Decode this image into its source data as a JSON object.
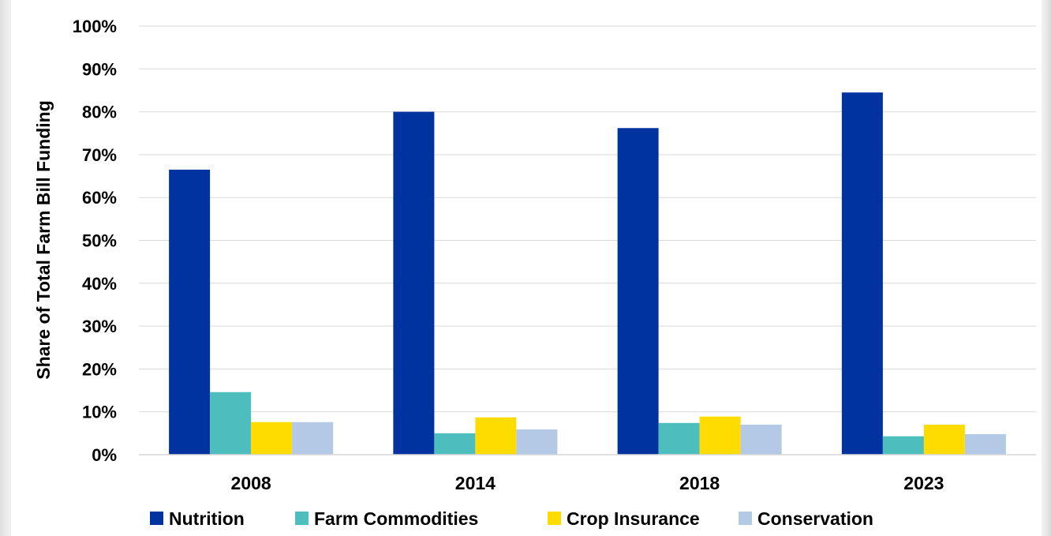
{
  "chart_data": {
    "type": "bar",
    "title": "",
    "xlabel": "",
    "ylabel": "Share of Total Farm Bill Funding",
    "categories": [
      "2008",
      "2014",
      "2018",
      "2023"
    ],
    "series": [
      {
        "name": "Nutrition",
        "color": "#0033a0",
        "values": [
          66.5,
          80,
          76.2,
          84.5
        ]
      },
      {
        "name": "Farm Commodities",
        "color": "#4dbdbd",
        "values": [
          14.6,
          5,
          7.4,
          4.3
        ]
      },
      {
        "name": "Crop Insurance",
        "color": "#ffdc00",
        "values": [
          7.6,
          8.7,
          8.9,
          7
        ]
      },
      {
        "name": "Conservation",
        "color": "#b3c9e6",
        "values": [
          7.6,
          5.9,
          7,
          4.8
        ]
      }
    ],
    "ylim": [
      0,
      100
    ],
    "yticks": [
      0,
      10,
      20,
      30,
      40,
      50,
      60,
      70,
      80,
      90,
      100
    ],
    "ytick_labels": [
      "0%",
      "10%",
      "20%",
      "30%",
      "40%",
      "50%",
      "60%",
      "70%",
      "80%",
      "90%",
      "100%"
    ],
    "grid": true,
    "legend_position": "bottom"
  }
}
